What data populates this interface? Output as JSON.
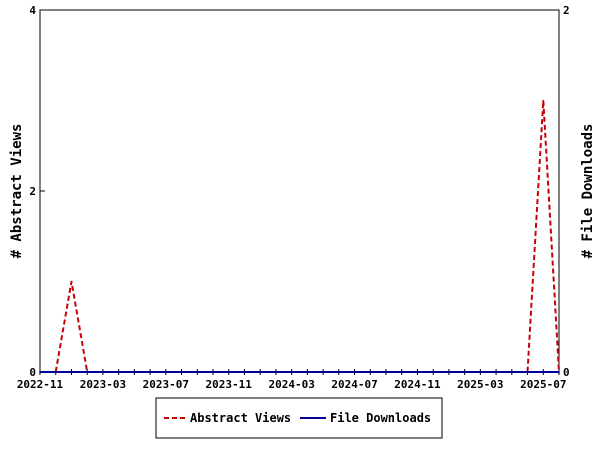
{
  "chart_data": {
    "type": "line",
    "title": "",
    "x_ticks": [
      "2022-11",
      "2023-03",
      "2023-07",
      "2023-11",
      "2024-03",
      "2024-07",
      "2024-11",
      "2025-03",
      "2025-07"
    ],
    "x_range": [
      "2022-11",
      "2025-08"
    ],
    "y_left": {
      "label": "# Abstract Views",
      "range": [
        0,
        4
      ],
      "ticks": [
        "0",
        "2",
        "4"
      ]
    },
    "y_right": {
      "label": "# File Downloads",
      "range": [
        0,
        2
      ],
      "ticks": [
        "0",
        "2"
      ]
    },
    "months": [
      "2022-11",
      "2022-12",
      "2023-01",
      "2023-02",
      "2023-03",
      "2023-04",
      "2023-05",
      "2023-06",
      "2023-07",
      "2023-08",
      "2023-09",
      "2023-10",
      "2023-11",
      "2023-12",
      "2024-01",
      "2024-02",
      "2024-03",
      "2024-04",
      "2024-05",
      "2024-06",
      "2024-07",
      "2024-08",
      "2024-09",
      "2024-10",
      "2024-11",
      "2024-12",
      "2025-01",
      "2025-02",
      "2025-03",
      "2025-04",
      "2025-05",
      "2025-06",
      "2025-07",
      "2025-08"
    ],
    "series": [
      {
        "name": "Abstract Views",
        "axis": "left",
        "color": "#cc0000",
        "dash": "dashed",
        "values": [
          0,
          0,
          1,
          0,
          0,
          0,
          0,
          0,
          0,
          0,
          0,
          0,
          0,
          0,
          0,
          0,
          0,
          0,
          0,
          0,
          0,
          0,
          0,
          0,
          0,
          0,
          0,
          0,
          0,
          0,
          0,
          0,
          3,
          0
        ]
      },
      {
        "name": "File Downloads",
        "axis": "right",
        "color": "#000099",
        "dash": "solid",
        "values": [
          0,
          0,
          0,
          0,
          0,
          0,
          0,
          0,
          0,
          0,
          0,
          0,
          0,
          0,
          0,
          0,
          0,
          0,
          0,
          0,
          0,
          0,
          0,
          0,
          0,
          0,
          0,
          0,
          0,
          0,
          0,
          0,
          0,
          0
        ]
      }
    ],
    "grid": false,
    "legend": "bottom-center"
  }
}
